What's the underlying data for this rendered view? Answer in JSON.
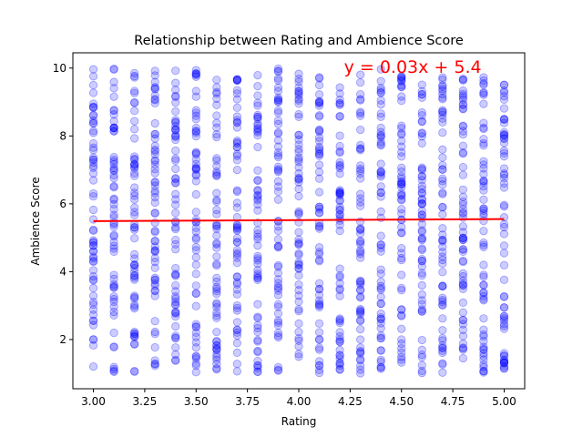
{
  "chart_data": {
    "type": "scatter",
    "title": "Relationship between Rating and Ambience Score",
    "xlabel": "Rating",
    "ylabel": "Ambience Score",
    "xlim": [
      2.9,
      5.1
    ],
    "ylim": [
      0.55,
      10.45
    ],
    "x_ticks": [
      "3.00",
      "3.25",
      "3.50",
      "3.75",
      "4.00",
      "4.25",
      "4.50",
      "4.75",
      "5.00"
    ],
    "y_ticks": [
      "2",
      "4",
      "6",
      "8",
      "10"
    ],
    "x_categories": [
      3.0,
      3.1,
      3.2,
      3.3,
      3.4,
      3.5,
      3.6,
      3.7,
      3.8,
      3.9,
      4.0,
      4.1,
      4.2,
      4.3,
      4.4,
      4.5,
      4.6,
      4.7,
      4.8,
      4.9,
      5.0
    ],
    "y_range": [
      1.0,
      10.0
    ],
    "point_color": "#0000ff",
    "point_alpha": 0.2,
    "trend_line": {
      "slope": 0.03,
      "intercept": 5.4,
      "x_range": [
        3.0,
        5.0
      ],
      "color": "#ff0000",
      "label": "y = 0.03x + 5.4",
      "label_position": [
        4.22,
        10.0
      ]
    },
    "grid": false,
    "legend": "none"
  }
}
